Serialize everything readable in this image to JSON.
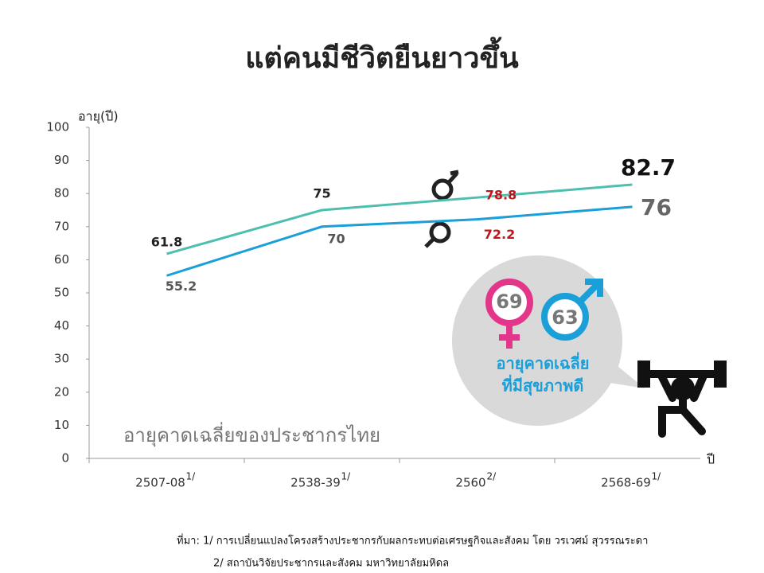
{
  "chart_data": {
    "type": "line",
    "title": "แต่คนมีชีวิตยืนยาวขึ้น",
    "subtitle": "อายุคาดเฉลี่ยของประชากรไทย",
    "y_label": "อายุ(ปี)",
    "x_label": "ปี",
    "categories": [
      "2507-08",
      "2538-39",
      "2560",
      "2568-69"
    ],
    "category_notes": [
      "1/",
      "1/",
      "2/",
      "1/"
    ],
    "series": [
      {
        "color": "#4dbfae",
        "values": [
          61.8,
          75,
          78.8,
          82.7
        ]
      },
      {
        "color": "#1a9fd8",
        "values": [
          55.2,
          70,
          72.2,
          76
        ]
      }
    ],
    "ylim": [
      0,
      100
    ],
    "yticks": [
      0,
      10,
      20,
      30,
      40,
      50,
      60,
      70,
      80,
      90,
      100
    ],
    "grid": false,
    "healthy": {
      "female": 69,
      "male": 63,
      "caption": [
        "อายุคาดเฉลี่ย",
        "ที่มีสุขภาพดี"
      ]
    },
    "source": [
      "ที่มา: 1/ การเปลี่ยนแปลงโครงสร้างประชากรกับผลกระทบต่อเศรษฐกิจและสังคม  โดย วรเวศม์ สุวรรณระดา",
      "2/ สถาบันวิจัยประชากรและสังคม มหาวิทยาลัยมหิดล"
    ]
  }
}
